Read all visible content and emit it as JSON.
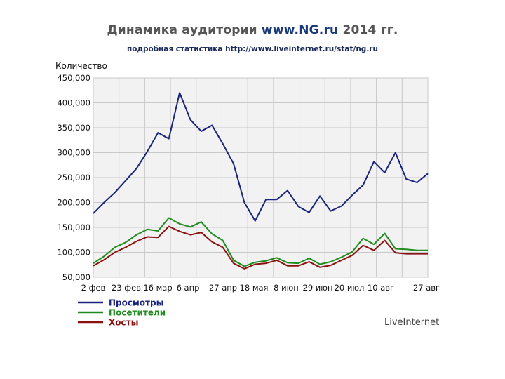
{
  "title": {
    "prefix": "Динамика аудитории",
    "site": "www.NG.ru",
    "suffix": "2014 гг."
  },
  "subtitle": "подробная статистика http://www.liveinternet.ru/stat/ng.ru",
  "watermark": "LiveInternet",
  "colors": {
    "views": "#1a237e",
    "visitors": "#1e8c1e",
    "hosts": "#8b1010",
    "plot_bg": "#f2f2f2",
    "grid": "#c8c8c8"
  },
  "chart_data": {
    "type": "line",
    "ylabel": "Количество",
    "ylim": [
      50000,
      450000
    ],
    "yticks": [
      450000,
      400000,
      350000,
      300000,
      250000,
      200000,
      150000,
      100000,
      50000
    ],
    "ytick_labels": [
      "450,000",
      "400,000",
      "350,000",
      "300,000",
      "250,000",
      "200,000",
      "150,000",
      "100,000",
      "50,000"
    ],
    "xlim": [
      0,
      29
    ],
    "xticks": [
      0,
      3,
      6,
      9,
      12,
      15,
      18,
      21,
      24,
      27
    ],
    "xtick_labels": [
      "2 фев",
      "23 фев",
      "16 мар",
      "6 апр",
      "27 апр",
      "18 мая",
      "8 июн",
      "29 июн",
      "20 июл",
      "10 авг",
      "27 авг"
    ],
    "xtick_positions": [
      0,
      3,
      6,
      9,
      12,
      15,
      18,
      21,
      24,
      27,
      29.4
    ],
    "legend": "bottom-left",
    "grid": true,
    "series": [
      {
        "name": "Просмотры",
        "color": "#1a237e",
        "values": [
          178000,
          200000,
          220000,
          244000,
          268000,
          302000,
          340000,
          328000,
          420000,
          366000,
          343000,
          355000,
          318000,
          278000,
          200000,
          163000,
          206000,
          206000,
          224000,
          192000,
          180000,
          213000,
          183000,
          193000,
          215000,
          235000,
          282000,
          260000,
          300000,
          247000,
          240000,
          258000
        ]
      },
      {
        "name": "Посетители",
        "color": "#1e8c1e",
        "values": [
          78000,
          92000,
          110000,
          120000,
          135000,
          146000,
          143000,
          169000,
          157000,
          151000,
          161000,
          137000,
          124000,
          84000,
          72000,
          80000,
          83000,
          89000,
          79000,
          78000,
          88000,
          76000,
          81000,
          90000,
          101000,
          128000,
          116000,
          138000,
          107000,
          106000,
          104000,
          104000
        ]
      },
      {
        "name": "Хосты",
        "color": "#8b1010",
        "values": [
          73000,
          85000,
          100000,
          110000,
          122000,
          131000,
          130000,
          152000,
          142000,
          135000,
          140000,
          121000,
          110000,
          78000,
          67000,
          76000,
          78000,
          84000,
          73000,
          73000,
          81000,
          70000,
          74000,
          84000,
          94000,
          114000,
          104000,
          124000,
          99000,
          97000,
          97000,
          97000
        ]
      }
    ]
  }
}
